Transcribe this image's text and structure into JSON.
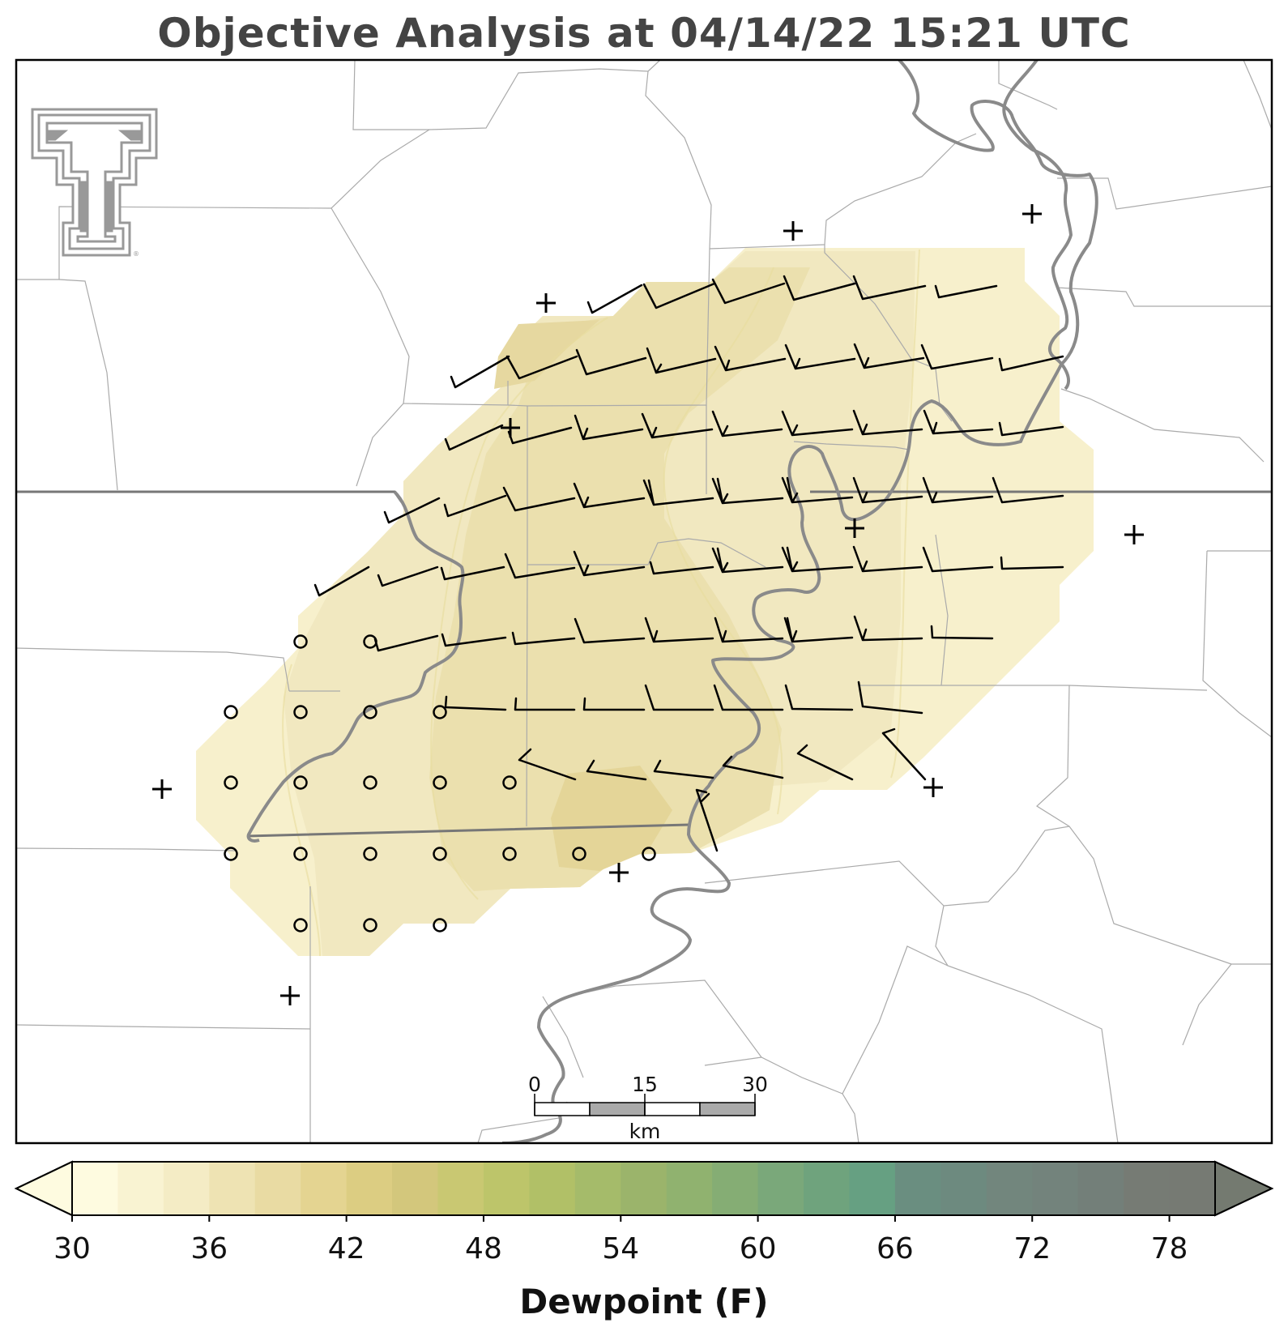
{
  "title": "Objective Analysis at 04/14/22 15:21 UTC",
  "logo": {
    "name": "texas-tech-double-t-logo",
    "color": "#999999"
  },
  "scale_bar": {
    "ticks": [
      "0",
      "15",
      "30"
    ],
    "unit": "km"
  },
  "colorbar": {
    "label": "Dewpoint (F)",
    "min": 30,
    "max": 80,
    "step": 2,
    "tick_labels": [
      "30",
      "36",
      "42",
      "48",
      "54",
      "60",
      "66",
      "72",
      "78"
    ],
    "extend": "both",
    "colors": [
      "#fefbe0",
      "#f9f3d2",
      "#f4ecc5",
      "#eee3b3",
      "#e9dba3",
      "#e4d491",
      "#dccd82",
      "#d3c77c",
      "#c9c872",
      "#bdc56a",
      "#b1c067",
      "#a5bb6a",
      "#9bb46b",
      "#90b26f",
      "#85ad74",
      "#7aa87a",
      "#6fa37d",
      "#66a082",
      "#6a8e80",
      "#6d8a7f",
      "#72867d",
      "#73837c",
      "#737f79",
      "#767b74",
      "#767a73"
    ],
    "under_color": "#fefbe0",
    "over_color": "#747a70"
  },
  "map_style": {
    "dewpoint_colors": [
      "#fbf5d4",
      "#f3ebc2",
      "#ece2b0",
      "#e6da9e",
      "#e0d28f"
    ]
  }
}
